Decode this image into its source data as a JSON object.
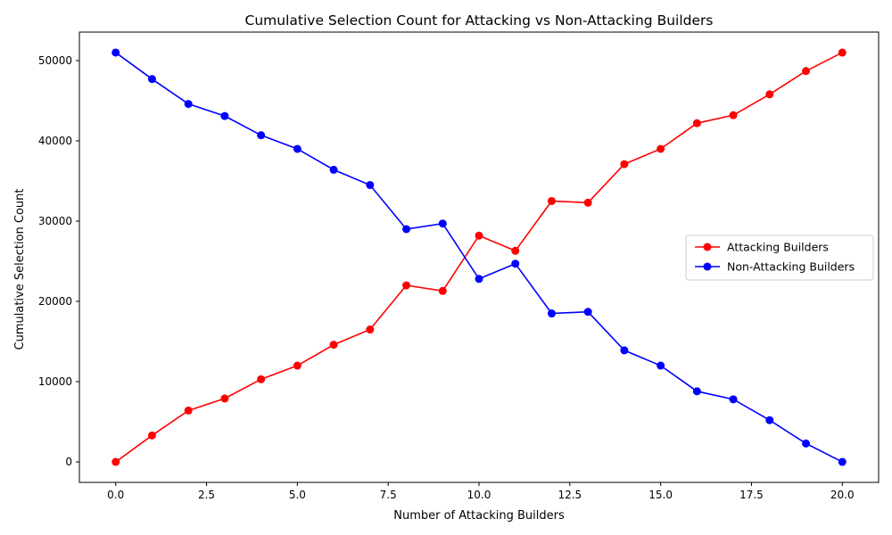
{
  "chart_data": {
    "type": "line",
    "title": "Cumulative Selection Count for Attacking vs Non-Attacking Builders",
    "xlabel": "Number of Attacking Builders",
    "ylabel": "Cumulative Selection Count",
    "xlim": [
      -1,
      21
    ],
    "ylim": [
      -2550,
      53550
    ],
    "xticks": [
      0,
      2.5,
      5,
      7.5,
      10,
      12.5,
      15,
      17.5,
      20
    ],
    "xtick_labels": [
      "0.0",
      "2.5",
      "5.0",
      "7.5",
      "10.0",
      "12.5",
      "15.0",
      "17.5",
      "20.0"
    ],
    "yticks": [
      0,
      10000,
      20000,
      30000,
      40000,
      50000
    ],
    "ytick_labels": [
      "0",
      "10000",
      "20000",
      "30000",
      "40000",
      "50000"
    ],
    "grid": false,
    "legend_position": "center-right",
    "x": [
      0,
      1,
      2,
      3,
      4,
      5,
      6,
      7,
      8,
      9,
      10,
      11,
      12,
      13,
      14,
      15,
      16,
      17,
      18,
      19,
      20
    ],
    "series": [
      {
        "name": "Attacking Builders",
        "color": "#ff0000",
        "values": [
          0,
          3300,
          6400,
          7900,
          10300,
          12000,
          14600,
          16500,
          22000,
          21300,
          28200,
          26300,
          32500,
          32300,
          37100,
          39000,
          42200,
          43200,
          45800,
          48700,
          51000
        ]
      },
      {
        "name": "Non-Attacking Builders",
        "color": "#0000ff",
        "values": [
          51000,
          47700,
          44600,
          43100,
          40700,
          39000,
          36400,
          34500,
          29000,
          29700,
          22800,
          24700,
          18500,
          18700,
          13900,
          12000,
          8800,
          7800,
          5200,
          2300,
          0
        ]
      }
    ]
  }
}
